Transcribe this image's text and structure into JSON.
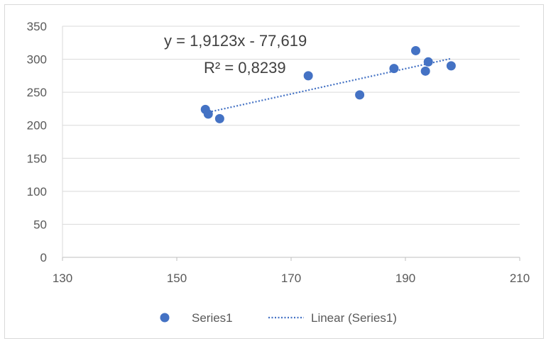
{
  "chart_data": {
    "type": "scatter",
    "title": "",
    "xlabel": "",
    "ylabel": "",
    "xlim": [
      130,
      210
    ],
    "ylim": [
      0,
      350
    ],
    "x_ticks": [
      "130",
      "150",
      "170",
      "190",
      "210"
    ],
    "y_ticks": [
      "0",
      "50",
      "100",
      "150",
      "200",
      "250",
      "300",
      "350"
    ],
    "grid": "horizontal",
    "series": [
      {
        "name": "Series1",
        "color": "#4472C4",
        "points": [
          {
            "x": 155.0,
            "y": 224
          },
          {
            "x": 155.5,
            "y": 217
          },
          {
            "x": 157.5,
            "y": 210
          },
          {
            "x": 173.0,
            "y": 275
          },
          {
            "x": 182.0,
            "y": 246
          },
          {
            "x": 188.0,
            "y": 286
          },
          {
            "x": 191.8,
            "y": 313
          },
          {
            "x": 193.5,
            "y": 282
          },
          {
            "x": 194.0,
            "y": 296
          },
          {
            "x": 198.0,
            "y": 290
          }
        ]
      }
    ],
    "trendline": {
      "name": "Linear (Series1)",
      "type": "linear",
      "slope": 1.9123,
      "intercept": -77.619,
      "x_range": [
        155.0,
        198.0
      ],
      "style": "dotted",
      "color": "#4472C4"
    },
    "annotations": {
      "equation": "y = 1,9123x - 77,619",
      "r_squared": "R² = 0,8239"
    },
    "legend": {
      "position": "bottom",
      "items": [
        "Series1",
        "Linear (Series1)"
      ]
    },
    "grid_color": "#d9d9d9",
    "axis_color": "#bfbfbf"
  }
}
